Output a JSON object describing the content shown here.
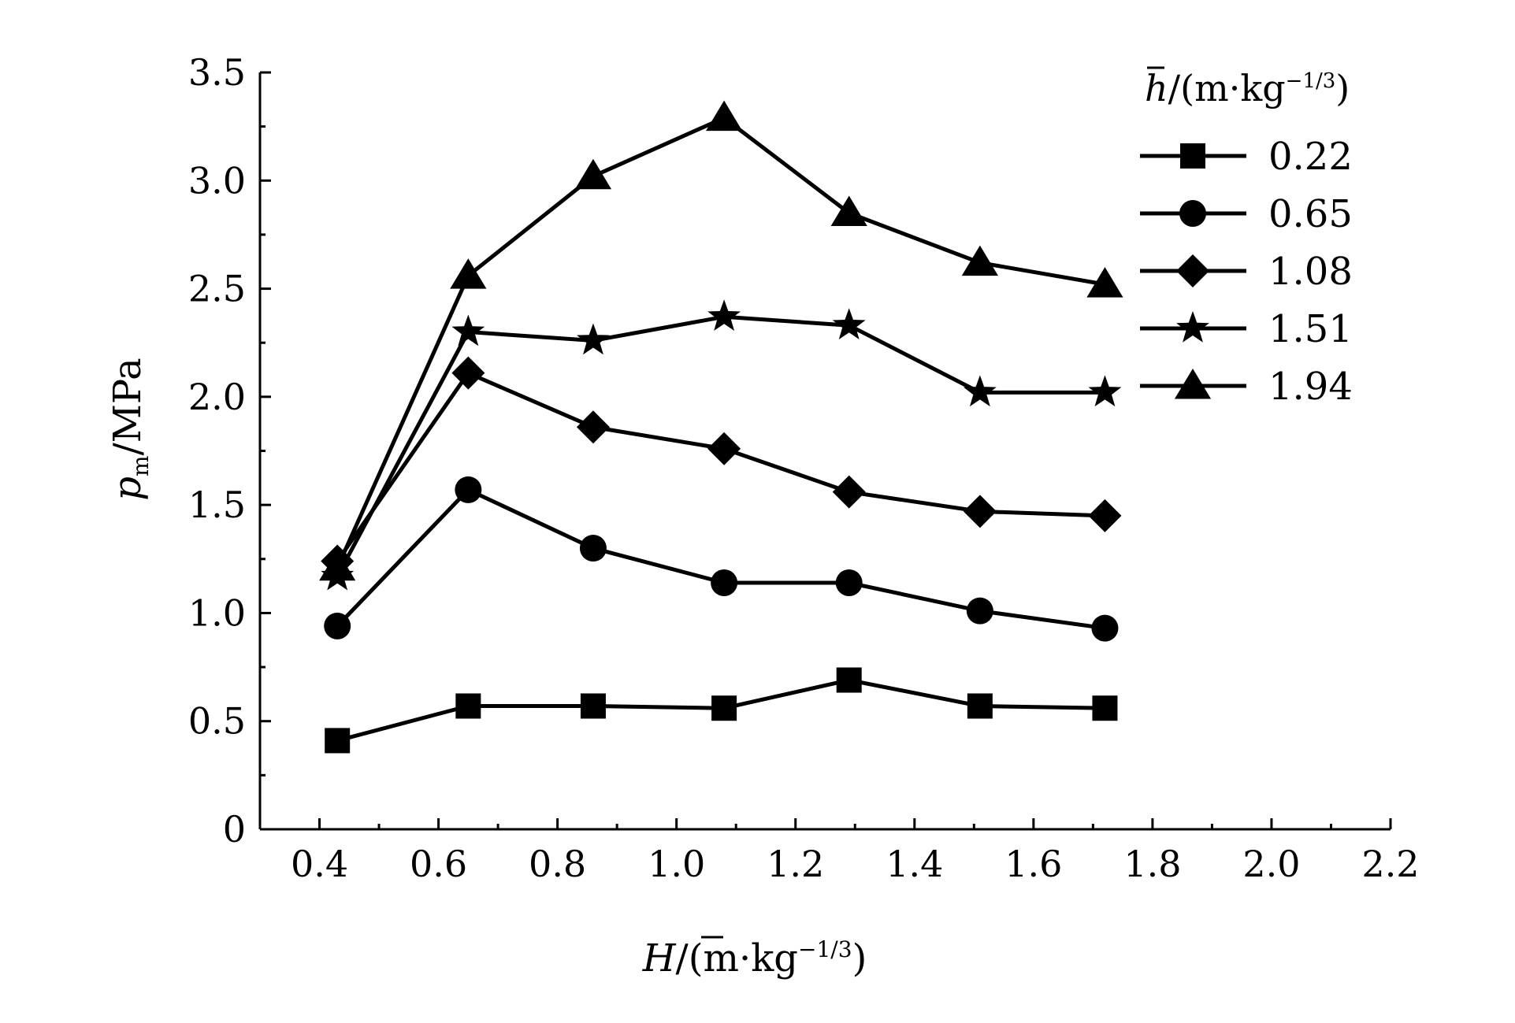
{
  "chart_data": {
    "type": "line",
    "title": "",
    "xlabel": {
      "symbol": "H",
      "unit": "/(m·kg",
      "exp": "−1/3",
      "close": ")"
    },
    "ylabel": {
      "symbol": "p",
      "sub": "m",
      "unit": "/MPa"
    },
    "xlim": [
      0.3,
      2.2
    ],
    "ylim": [
      0,
      3.5
    ],
    "xticks": [
      "0.4",
      "0.6",
      "0.8",
      "1.0",
      "1.2",
      "1.4",
      "1.6",
      "1.8",
      "2.0",
      "2.2"
    ],
    "yticks": [
      "0",
      "0.5",
      "1.0",
      "1.5",
      "2.0",
      "2.5",
      "3.0",
      "3.5"
    ],
    "x": [
      0.43,
      0.65,
      0.86,
      1.08,
      1.29,
      1.51,
      1.72
    ],
    "legend_title": {
      "symbol": "h",
      "unit": "/(m·kg",
      "exp": "−1/3",
      "close": ")"
    },
    "legend_position": "top-right",
    "grid": false,
    "series": [
      {
        "name": "0.22",
        "marker": "square",
        "values": [
          0.41,
          0.57,
          0.57,
          0.56,
          0.69,
          0.57,
          0.56
        ]
      },
      {
        "name": "0.65",
        "marker": "circle",
        "values": [
          0.94,
          1.57,
          1.3,
          1.14,
          1.14,
          1.01,
          0.93
        ]
      },
      {
        "name": "1.08",
        "marker": "diamond",
        "values": [
          1.24,
          2.11,
          1.86,
          1.76,
          1.56,
          1.47,
          1.45
        ]
      },
      {
        "name": "1.51",
        "marker": "star",
        "values": [
          1.17,
          2.3,
          2.26,
          2.37,
          2.33,
          2.02,
          2.02
        ]
      },
      {
        "name": "1.94",
        "marker": "triangle",
        "values": [
          1.21,
          2.56,
          3.02,
          3.29,
          2.85,
          2.62,
          2.52
        ]
      }
    ],
    "colors": {
      "line": "#000000",
      "background": "#ffffff"
    }
  }
}
